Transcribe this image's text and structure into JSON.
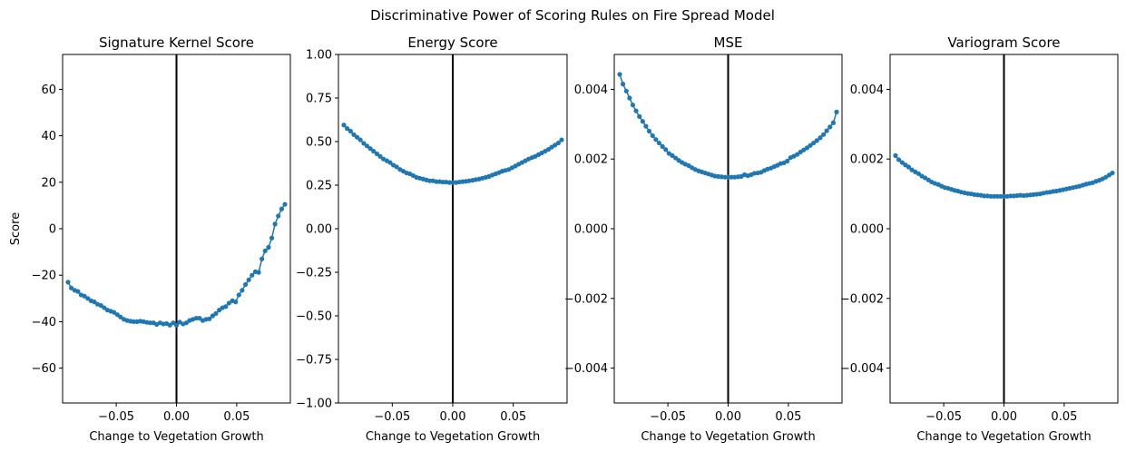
{
  "figure": {
    "title": "Discriminative Power of Scoring Rules on Fire Spread Model"
  },
  "chart_data": [
    {
      "type": "line",
      "title": "Signature Kernel Score",
      "xlabel": "Change to Vegetation Growth",
      "ylabel": "Score",
      "xlim": [
        -0.0945,
        0.0945
      ],
      "ylim": [
        -75,
        75
      ],
      "xticks": [
        -0.05,
        0.0,
        0.05
      ],
      "xtick_labels": [
        "−0.05",
        "0.00",
        "0.05"
      ],
      "yticks": [
        -60,
        -40,
        -20,
        0,
        20,
        40,
        60
      ],
      "ytick_labels": [
        "−60",
        "−40",
        "−20",
        "0",
        "20",
        "40",
        "60"
      ],
      "vline_x": 0,
      "series": [
        {
          "color": "#1f77b4",
          "x": [
            -0.09,
            -0.0873,
            -0.0845,
            -0.0818,
            -0.0791,
            -0.0764,
            -0.0736,
            -0.0709,
            -0.0682,
            -0.0655,
            -0.0627,
            -0.06,
            -0.0573,
            -0.0545,
            -0.0518,
            -0.0491,
            -0.0464,
            -0.0436,
            -0.0409,
            -0.0382,
            -0.0355,
            -0.0327,
            -0.03,
            -0.0273,
            -0.0245,
            -0.0218,
            -0.0191,
            -0.0164,
            -0.0136,
            -0.0109,
            -0.0082,
            -0.0055,
            -0.0027,
            0.0,
            0.0027,
            0.0055,
            0.0082,
            0.0109,
            0.0136,
            0.0164,
            0.0191,
            0.0218,
            0.0245,
            0.0273,
            0.03,
            0.0327,
            0.0355,
            0.0382,
            0.0409,
            0.0436,
            0.0464,
            0.0491,
            0.0518,
            0.0545,
            0.0573,
            0.06,
            0.0627,
            0.0655,
            0.0682,
            0.0709,
            0.0736,
            0.0764,
            0.0791,
            0.0818,
            0.0845,
            0.0873,
            0.09
          ],
          "values": [
            -23,
            -25.5,
            -26.5,
            -27,
            -28.5,
            -29,
            -30,
            -31,
            -31.5,
            -32.5,
            -33,
            -34,
            -35,
            -35.5,
            -36,
            -37,
            -38,
            -39,
            -39.5,
            -39.8,
            -40,
            -40,
            -39.8,
            -40,
            -40.3,
            -40.5,
            -40.5,
            -41.2,
            -40.5,
            -41,
            -40.8,
            -41.5,
            -40.5,
            -41.5,
            -40.2,
            -41,
            -40.5,
            -39.5,
            -39,
            -38.5,
            -38.5,
            -39.5,
            -39,
            -38.8,
            -37.5,
            -36.5,
            -35,
            -34,
            -33.5,
            -32,
            -31,
            -31.5,
            -28.5,
            -26.5,
            -24,
            -22,
            -20,
            -18.5,
            -18.8,
            -13,
            -9.5,
            -8,
            -4,
            2,
            5.5,
            8.5,
            10.5
          ]
        }
      ]
    },
    {
      "type": "line",
      "title": "Energy Score",
      "xlabel": "Change to Vegetation Growth",
      "ylabel": "",
      "xlim": [
        -0.0945,
        0.0945
      ],
      "ylim": [
        -1.0,
        1.0
      ],
      "xticks": [
        -0.05,
        0.0,
        0.05
      ],
      "xtick_labels": [
        "−0.05",
        "0.00",
        "0.05"
      ],
      "yticks": [
        -1.0,
        -0.75,
        -0.5,
        -0.25,
        0.0,
        0.25,
        0.5,
        0.75,
        1.0
      ],
      "ytick_labels": [
        "−1.00",
        "−0.75",
        "−0.50",
        "−0.25",
        "0.00",
        "0.25",
        "0.50",
        "0.75",
        "1.00"
      ],
      "vline_x": 0,
      "series": [
        {
          "color": "#1f77b4",
          "x": [
            -0.09,
            -0.0873,
            -0.0845,
            -0.0818,
            -0.0791,
            -0.0764,
            -0.0736,
            -0.0709,
            -0.0682,
            -0.0655,
            -0.0627,
            -0.06,
            -0.0573,
            -0.0545,
            -0.0518,
            -0.0491,
            -0.0464,
            -0.0436,
            -0.0409,
            -0.0382,
            -0.0355,
            -0.0327,
            -0.03,
            -0.0273,
            -0.0245,
            -0.0218,
            -0.0191,
            -0.0164,
            -0.0136,
            -0.0109,
            -0.0082,
            -0.0055,
            -0.0027,
            0.0,
            0.0027,
            0.0055,
            0.0082,
            0.0109,
            0.0136,
            0.0164,
            0.0191,
            0.0218,
            0.0245,
            0.0273,
            0.03,
            0.0327,
            0.0355,
            0.0382,
            0.0409,
            0.0436,
            0.0464,
            0.0491,
            0.0518,
            0.0545,
            0.0573,
            0.06,
            0.0627,
            0.0655,
            0.0682,
            0.0709,
            0.0736,
            0.0764,
            0.0791,
            0.0818,
            0.0845,
            0.0873,
            0.09
          ],
          "values": [
            0.595,
            0.575,
            0.56,
            0.54,
            0.525,
            0.51,
            0.49,
            0.475,
            0.46,
            0.445,
            0.43,
            0.415,
            0.4,
            0.39,
            0.38,
            0.365,
            0.355,
            0.34,
            0.33,
            0.32,
            0.315,
            0.305,
            0.295,
            0.29,
            0.285,
            0.28,
            0.275,
            0.275,
            0.27,
            0.27,
            0.268,
            0.268,
            0.265,
            0.265,
            0.265,
            0.268,
            0.27,
            0.272,
            0.275,
            0.278,
            0.282,
            0.285,
            0.29,
            0.295,
            0.3,
            0.308,
            0.315,
            0.322,
            0.33,
            0.335,
            0.34,
            0.35,
            0.36,
            0.37,
            0.38,
            0.39,
            0.4,
            0.408,
            0.415,
            0.425,
            0.435,
            0.445,
            0.455,
            0.468,
            0.48,
            0.492,
            0.51
          ]
        }
      ]
    },
    {
      "type": "line",
      "title": "MSE",
      "xlabel": "Change to Vegetation Growth",
      "ylabel": "",
      "xlim": [
        -0.0945,
        0.0945
      ],
      "ylim": [
        -0.005,
        0.005
      ],
      "xticks": [
        -0.05,
        0.0,
        0.05
      ],
      "xtick_labels": [
        "−0.05",
        "0.00",
        "0.05"
      ],
      "yticks": [
        -0.004,
        -0.002,
        0.0,
        0.002,
        0.004
      ],
      "ytick_labels": [
        "−0.004",
        "−0.002",
        "0.000",
        "0.002",
        "0.004"
      ],
      "vline_x": 0,
      "series": [
        {
          "color": "#1f77b4",
          "x": [
            -0.09,
            -0.0873,
            -0.0845,
            -0.0818,
            -0.0791,
            -0.0764,
            -0.0736,
            -0.0709,
            -0.0682,
            -0.0655,
            -0.0627,
            -0.06,
            -0.0573,
            -0.0545,
            -0.0518,
            -0.0491,
            -0.0464,
            -0.0436,
            -0.0409,
            -0.0382,
            -0.0355,
            -0.0327,
            -0.03,
            -0.0273,
            -0.0245,
            -0.0218,
            -0.0191,
            -0.0164,
            -0.0136,
            -0.0109,
            -0.0082,
            -0.0055,
            -0.0027,
            0.0,
            0.0027,
            0.0055,
            0.0082,
            0.0109,
            0.0136,
            0.0164,
            0.0191,
            0.0218,
            0.0245,
            0.0273,
            0.03,
            0.0327,
            0.0355,
            0.0382,
            0.0409,
            0.0436,
            0.0464,
            0.0491,
            0.0518,
            0.0545,
            0.0573,
            0.06,
            0.0627,
            0.0655,
            0.0682,
            0.0709,
            0.0736,
            0.0764,
            0.0791,
            0.0818,
            0.0845,
            0.0873,
            0.09
          ],
          "values": [
            0.00443,
            0.00415,
            0.00395,
            0.00375,
            0.00355,
            0.00338,
            0.00322,
            0.00308,
            0.00294,
            0.0028,
            0.00267,
            0.00256,
            0.00246,
            0.00236,
            0.00227,
            0.00216,
            0.0021,
            0.00203,
            0.00196,
            0.0019,
            0.00185,
            0.00181,
            0.00175,
            0.0017,
            0.00166,
            0.00163,
            0.0016,
            0.00157,
            0.00154,
            0.00151,
            0.0015,
            0.00149,
            0.00148,
            0.00148,
            0.00148,
            0.00148,
            0.00149,
            0.0015,
            0.00155,
            0.00152,
            0.00155,
            0.00159,
            0.0016,
            0.00162,
            0.00167,
            0.00171,
            0.00174,
            0.00178,
            0.00182,
            0.00187,
            0.00189,
            0.00194,
            0.00204,
            0.00208,
            0.00213,
            0.0022,
            0.00226,
            0.00232,
            0.00239,
            0.00246,
            0.00253,
            0.00261,
            0.0027,
            0.00281,
            0.00292,
            0.00304,
            0.00335
          ]
        }
      ]
    },
    {
      "type": "line",
      "title": "Variogram Score",
      "xlabel": "Change to Vegetation Growth",
      "ylabel": "",
      "xlim": [
        -0.0945,
        0.0945
      ],
      "ylim": [
        -0.005,
        0.005
      ],
      "xticks": [
        -0.05,
        0.0,
        0.05
      ],
      "xtick_labels": [
        "−0.05",
        "0.00",
        "0.05"
      ],
      "yticks": [
        -0.004,
        -0.002,
        0.0,
        0.002,
        0.004
      ],
      "ytick_labels": [
        "−0.004",
        "−0.002",
        "0.000",
        "0.002",
        "0.004"
      ],
      "vline_x": 0,
      "series": [
        {
          "color": "#1f77b4",
          "x": [
            -0.09,
            -0.0873,
            -0.0845,
            -0.0818,
            -0.0791,
            -0.0764,
            -0.0736,
            -0.0709,
            -0.0682,
            -0.0655,
            -0.0627,
            -0.06,
            -0.0573,
            -0.0545,
            -0.0518,
            -0.0491,
            -0.0464,
            -0.0436,
            -0.0409,
            -0.0382,
            -0.0355,
            -0.0327,
            -0.03,
            -0.0273,
            -0.0245,
            -0.0218,
            -0.0191,
            -0.0164,
            -0.0136,
            -0.0109,
            -0.0082,
            -0.0055,
            -0.0027,
            0.0,
            0.0027,
            0.0055,
            0.0082,
            0.0109,
            0.0136,
            0.0164,
            0.0191,
            0.0218,
            0.0245,
            0.0273,
            0.03,
            0.0327,
            0.0355,
            0.0382,
            0.0409,
            0.0436,
            0.0464,
            0.0491,
            0.0518,
            0.0545,
            0.0573,
            0.06,
            0.0627,
            0.0655,
            0.0682,
            0.0709,
            0.0736,
            0.0764,
            0.0791,
            0.0818,
            0.0845,
            0.0873,
            0.09
          ],
          "values": [
            0.0021,
            0.00198,
            0.0019,
            0.00183,
            0.00177,
            0.00169,
            0.00163,
            0.00158,
            0.00151,
            0.00146,
            0.0014,
            0.00134,
            0.0013,
            0.00127,
            0.00122,
            0.00118,
            0.00116,
            0.00113,
            0.0011,
            0.00108,
            0.00105,
            0.00103,
            0.00101,
            0.001,
            0.00098,
            0.00097,
            0.00096,
            0.00094,
            0.00094,
            0.00093,
            0.00093,
            0.00093,
            0.00093,
            0.00093,
            0.00093,
            0.00094,
            0.00094,
            0.00095,
            0.00096,
            0.00095,
            0.00096,
            0.00097,
            0.00098,
            0.00099,
            0.001,
            0.00102,
            0.00104,
            0.00105,
            0.00107,
            0.00108,
            0.0011,
            0.00112,
            0.00114,
            0.00116,
            0.00118,
            0.0012,
            0.00122,
            0.00125,
            0.00128,
            0.0013,
            0.00132,
            0.00136,
            0.00139,
            0.00143,
            0.00148,
            0.00154,
            0.0016
          ]
        }
      ]
    }
  ]
}
